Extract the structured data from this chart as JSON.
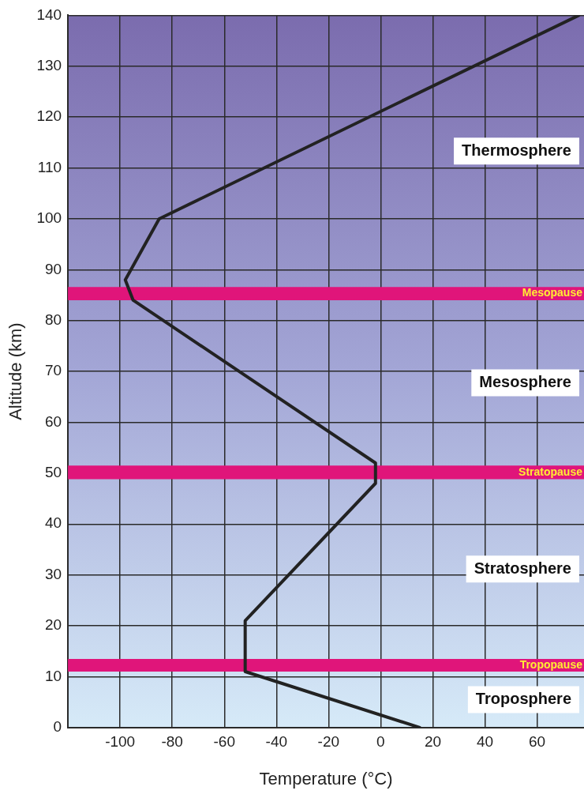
{
  "chart_data": {
    "type": "line",
    "xlabel": "Temperature (°C)",
    "ylabel": "Altitude (km)",
    "x": [
      15,
      -52,
      -52,
      -2,
      -2,
      -95,
      -98,
      -85,
      76
    ],
    "values": [
      0,
      11,
      21,
      48,
      52,
      84,
      88,
      100,
      140
    ],
    "color": "#222222",
    "xlim": [
      -120,
      78
    ],
    "xticks": [
      {
        "value": -120,
        "label": null
      },
      -100,
      -80,
      -60,
      -40,
      -20,
      0,
      20,
      40,
      60
    ],
    "ylim": [
      0,
      140
    ],
    "yticks": [
      0,
      10,
      20,
      30,
      40,
      50,
      60,
      70,
      80,
      90,
      100,
      110,
      120,
      130,
      140
    ],
    "grid": true,
    "legend": false,
    "marker": "none",
    "line_style": "solid",
    "bands": [
      {
        "axis": "y",
        "from": 84,
        "to": 86.6,
        "label": "Mesopause",
        "color": "#e0157a"
      },
      {
        "axis": "y",
        "from": 48.8,
        "to": 51.5,
        "label": "Stratopause",
        "color": "#e0157a"
      },
      {
        "axis": "y",
        "from": 11,
        "to": 13.5,
        "label": "Tropopause",
        "color": "#e0157a"
      }
    ],
    "annotations": [
      "Thermosphere",
      "Mesosphere",
      "Stratosphere",
      "Troposphere"
    ]
  }
}
